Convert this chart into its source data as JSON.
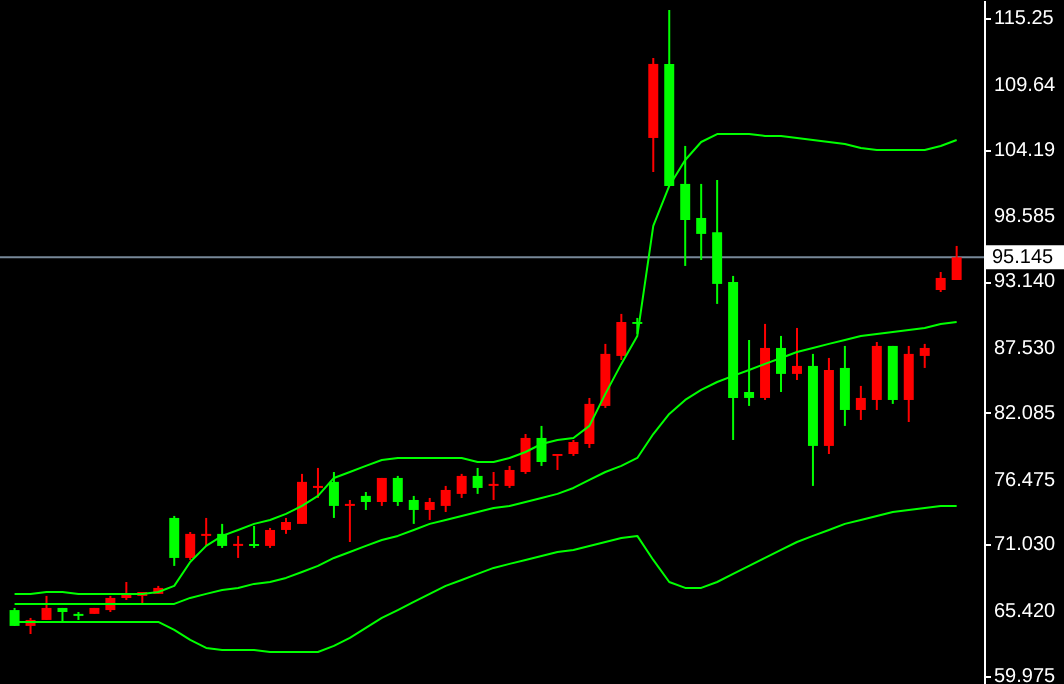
{
  "chart_data": {
    "type": "candlestick",
    "categories": [
      null,
      null,
      null,
      null,
      null,
      null,
      null,
      null,
      null,
      null,
      null,
      null,
      null,
      null,
      null,
      null,
      null,
      null,
      null,
      null,
      null,
      null,
      null,
      null,
      null,
      null,
      null,
      null,
      null,
      null,
      null,
      null,
      null,
      null,
      null,
      null,
      null,
      null,
      null,
      null,
      null,
      null,
      null,
      null,
      null,
      null,
      null,
      null,
      null,
      null,
      null,
      null,
      null,
      null,
      null,
      null,
      null,
      null,
      null,
      null
    ],
    "ohlc": [
      [
        65.51,
        65.69,
        64.18,
        64.18
      ],
      [
        64.18,
        64.85,
        63.5,
        64.68
      ],
      [
        64.68,
        66.7,
        64.68,
        65.69
      ],
      [
        65.69,
        65.69,
        64.51,
        65.35
      ],
      [
        65.19,
        65.35,
        64.68,
        65.02
      ],
      [
        65.19,
        65.69,
        65.19,
        65.69
      ],
      [
        65.51,
        66.7,
        65.35,
        66.53
      ],
      [
        66.53,
        67.87,
        66.36,
        66.87
      ],
      [
        66.7,
        67.03,
        66.03,
        67.03
      ],
      [
        66.87,
        67.54,
        66.87,
        67.37
      ],
      [
        73.25,
        73.42,
        69.22,
        69.89
      ],
      [
        69.89,
        72.07,
        69.72,
        71.91
      ],
      [
        71.74,
        73.25,
        70.9,
        71.91
      ],
      [
        71.91,
        72.75,
        70.73,
        70.9
      ],
      [
        70.9,
        71.74,
        69.89,
        71.07
      ],
      [
        71.07,
        72.58,
        70.73,
        70.9
      ],
      [
        70.9,
        72.41,
        70.73,
        72.24
      ],
      [
        72.24,
        73.25,
        71.91,
        72.91
      ],
      [
        72.75,
        76.95,
        72.75,
        76.28
      ],
      [
        75.77,
        77.45,
        74.93,
        75.94
      ],
      [
        76.28,
        77.11,
        73.25,
        74.26
      ],
      [
        74.26,
        74.76,
        71.23,
        74.43
      ],
      [
        75.1,
        75.43,
        73.92,
        74.59
      ],
      [
        74.59,
        76.61,
        74.26,
        76.61
      ],
      [
        76.61,
        76.78,
        74.26,
        74.59
      ],
      [
        74.76,
        75.1,
        72.75,
        73.92
      ],
      [
        73.92,
        74.93,
        73.08,
        74.59
      ],
      [
        74.26,
        75.94,
        73.75,
        75.6
      ],
      [
        75.27,
        76.95,
        74.93,
        76.78
      ],
      [
        76.78,
        77.45,
        75.27,
        75.77
      ],
      [
        75.94,
        77.11,
        74.76,
        76.11
      ],
      [
        75.94,
        77.62,
        75.77,
        77.28
      ],
      [
        77.11,
        80.3,
        76.95,
        79.97
      ],
      [
        79.97,
        80.98,
        77.62,
        77.95
      ],
      [
        78.46,
        78.62,
        77.28,
        78.62
      ],
      [
        78.62,
        79.8,
        78.46,
        79.63
      ],
      [
        79.46,
        83.33,
        79.13,
        82.83
      ],
      [
        82.66,
        87.87,
        82.49,
        87.03
      ],
      [
        86.86,
        90.39,
        86.52,
        89.71
      ],
      [
        89.71,
        90.05,
        88.71,
        89.55
      ],
      [
        105.17,
        111.89,
        102.31,
        111.39
      ],
      [
        111.39,
        115.92,
        101.14,
        101.14
      ],
      [
        101.31,
        104.5,
        94.42,
        98.28
      ],
      [
        98.45,
        101.31,
        94.92,
        97.11
      ],
      [
        97.25,
        101.64,
        91.23,
        92.91
      ],
      [
        93.07,
        93.58,
        79.8,
        83.33
      ],
      [
        83.83,
        88.2,
        82.66,
        83.33
      ],
      [
        83.33,
        89.55,
        83.16,
        87.53
      ],
      [
        87.53,
        88.54,
        83.83,
        85.35
      ],
      [
        85.35,
        89.21,
        84.84,
        86.02
      ],
      [
        86.02,
        87.03,
        75.94,
        79.3
      ],
      [
        79.3,
        86.69,
        78.62,
        85.68
      ],
      [
        85.85,
        87.7,
        80.98,
        82.32
      ],
      [
        82.32,
        84.34,
        81.48,
        83.33
      ],
      [
        83.16,
        88.03,
        82.32,
        87.7
      ],
      [
        87.7,
        87.7,
        82.83,
        83.16
      ],
      [
        83.16,
        87.7,
        81.31,
        87.03
      ],
      [
        86.86,
        87.87,
        85.85,
        87.53
      ],
      [
        92.4,
        93.91,
        92.23,
        93.41
      ],
      [
        93.24,
        96.1,
        93.24,
        95.145
      ]
    ],
    "colors": [
      "#00ff00",
      "#ff0000",
      "#ff0000",
      "#00ff00",
      "#00ff00",
      "#ff0000",
      "#ff0000",
      "#ff0000",
      "#ff0000",
      "#ff0000",
      "#00ff00",
      "#ff0000",
      "#ff0000",
      "#00ff00",
      "#ff0000",
      "#00ff00",
      "#ff0000",
      "#ff0000",
      "#ff0000",
      "#ff0000",
      "#00ff00",
      "#ff0000",
      "#00ff00",
      "#ff0000",
      "#00ff00",
      "#00ff00",
      "#ff0000",
      "#ff0000",
      "#ff0000",
      "#00ff00",
      "#ff0000",
      "#ff0000",
      "#ff0000",
      "#00ff00",
      "#ff0000",
      "#ff0000",
      "#ff0000",
      "#ff0000",
      "#ff0000",
      "#00ff00",
      "#ff0000",
      "#00ff00",
      "#00ff00",
      "#00ff00",
      "#00ff00",
      "#00ff00",
      "#00ff00",
      "#ff0000",
      "#00ff00",
      "#ff0000",
      "#00ff00",
      "#ff0000",
      "#00ff00",
      "#ff0000",
      "#ff0000",
      "#00ff00",
      "#ff0000",
      "#ff0000",
      "#ff0000",
      "#ff0000"
    ],
    "series": [
      {
        "type": "line",
        "color": "#00ff00",
        "values": [
          66.87,
          66.87,
          67.03,
          67.03,
          66.87,
          66.87,
          66.87,
          66.87,
          66.87,
          67.03,
          67.54,
          69.55,
          70.9,
          71.74,
          72.24,
          72.75,
          73.08,
          73.59,
          74.26,
          75.1,
          76.61,
          77.11,
          77.62,
          78.12,
          78.29,
          78.29,
          78.29,
          78.29,
          78.29,
          77.95,
          77.95,
          78.29,
          78.79,
          79.46,
          79.8,
          79.97,
          80.98,
          83.67,
          86.19,
          88.54,
          97.78,
          101.14,
          103.32,
          104.83,
          105.5,
          105.5,
          105.5,
          105.34,
          105.34,
          105.17,
          105.0,
          104.83,
          104.67,
          104.33,
          104.16,
          104.16,
          104.16,
          104.16,
          104.5,
          105.0
        ]
      },
      {
        "type": "line",
        "color": "#00ff00",
        "values": [
          66.03,
          66.03,
          66.03,
          66.03,
          66.03,
          66.03,
          66.03,
          66.03,
          66.03,
          66.03,
          66.03,
          66.53,
          66.87,
          67.2,
          67.37,
          67.71,
          67.87,
          68.21,
          68.71,
          69.22,
          69.89,
          70.39,
          70.9,
          71.4,
          71.74,
          72.24,
          72.75,
          73.08,
          73.42,
          73.75,
          74.09,
          74.26,
          74.59,
          74.93,
          75.27,
          75.77,
          76.44,
          77.11,
          77.62,
          78.29,
          80.3,
          81.99,
          83.16,
          84.0,
          84.67,
          85.18,
          85.68,
          86.19,
          86.69,
          87.19,
          87.53,
          87.87,
          88.2,
          88.54,
          88.71,
          88.87,
          89.04,
          89.21,
          89.55,
          89.71
        ]
      },
      {
        "type": "line",
        "color": "#00ff00",
        "values": [
          64.51,
          64.51,
          64.51,
          64.51,
          64.51,
          64.51,
          64.51,
          64.51,
          64.51,
          64.51,
          63.84,
          63.0,
          62.33,
          62.16,
          62.16,
          62.16,
          61.99,
          61.99,
          61.99,
          61.99,
          62.5,
          63.17,
          64.01,
          64.85,
          65.51,
          66.19,
          66.87,
          67.54,
          68.04,
          68.55,
          69.05,
          69.39,
          69.72,
          70.06,
          70.39,
          70.56,
          70.9,
          71.23,
          71.57,
          71.74,
          69.72,
          67.87,
          67.37,
          67.37,
          67.87,
          68.55,
          69.22,
          69.89,
          70.56,
          71.23,
          71.74,
          72.24,
          72.75,
          73.08,
          73.42,
          73.75,
          73.92,
          74.09,
          74.26,
          74.26
        ]
      }
    ],
    "ylim": [
      59.3,
      116.76
    ],
    "yticks": [
      115.25,
      109.64,
      104.19,
      98.585,
      {
        "value": 93.14,
        "label": "93.140"
      },
      {
        "value": 87.53,
        "label": "87.530"
      },
      82.085,
      76.475,
      {
        "value": 71.03,
        "label": "71.030"
      },
      {
        "value": 65.42,
        "label": "65.420"
      },
      59.975
    ],
    "ref_lines": [
      {
        "axis": "y",
        "value": 95.145,
        "label": "95.145",
        "color": "#778899"
      }
    ]
  }
}
